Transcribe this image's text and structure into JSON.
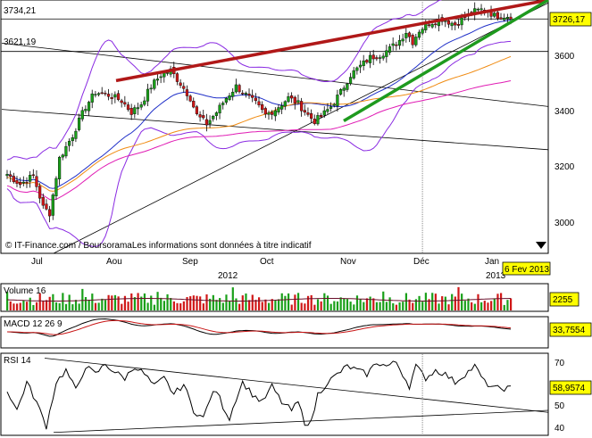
{
  "chart_data": [
    {
      "type": "candlestick",
      "panel": "price",
      "source_note": "© IT-Finance.com / BoursoramaLes informations sont données à titre indicatif",
      "x_labels": [
        "Jul",
        "Aou",
        "Sep",
        "Oct",
        "Nov",
        "Déc",
        "Jan"
      ],
      "year_label": "2012",
      "next_year_label": "2013",
      "date_label": "6 Fev 2013",
      "y_ticks": [
        "3000",
        "3200",
        "3400",
        "3600"
      ],
      "ylim": [
        2920,
        3800
      ],
      "last_value_label": "3726,17",
      "last_value": 3726.17,
      "hline_labels": [
        "3734,21",
        "3621,19"
      ],
      "hlines": [
        3734.21,
        3621.19
      ],
      "colors": {
        "up": "#19a019",
        "down": "#d01818",
        "resistance": "#b01818",
        "support": "#1e9a1e",
        "bollinger": "#8a2be2",
        "ma_short": "#2030c8",
        "ma_mid": "#f08c14",
        "ma_long": "#e01cb4"
      },
      "sessions": 155,
      "close_keypoints": [
        [
          0,
          3195
        ],
        [
          4,
          3160
        ],
        [
          8,
          3190
        ],
        [
          11,
          3080
        ],
        [
          13,
          3060
        ],
        [
          16,
          3250
        ],
        [
          20,
          3330
        ],
        [
          24,
          3430
        ],
        [
          27,
          3480
        ],
        [
          31,
          3470
        ],
        [
          35,
          3450
        ],
        [
          38,
          3410
        ],
        [
          41,
          3440
        ],
        [
          44,
          3500
        ],
        [
          47,
          3540
        ],
        [
          50,
          3555
        ],
        [
          53,
          3510
        ],
        [
          56,
          3460
        ],
        [
          58,
          3400
        ],
        [
          61,
          3370
        ],
        [
          64,
          3410
        ],
        [
          67,
          3460
        ],
        [
          70,
          3500
        ],
        [
          73,
          3470
        ],
        [
          76,
          3440
        ],
        [
          79,
          3400
        ],
        [
          82,
          3420
        ],
        [
          86,
          3460
        ],
        [
          89,
          3440
        ],
        [
          92,
          3400
        ],
        [
          94,
          3380
        ],
        [
          96,
          3395
        ],
        [
          99,
          3430
        ],
        [
          102,
          3480
        ],
        [
          105,
          3540
        ],
        [
          108,
          3570
        ],
        [
          111,
          3600
        ],
        [
          114,
          3610
        ],
        [
          117,
          3630
        ],
        [
          120,
          3660
        ],
        [
          122,
          3690
        ],
        [
          124,
          3655
        ],
        [
          126,
          3695
        ],
        [
          129,
          3720
        ],
        [
          133,
          3735
        ],
        [
          137,
          3715
        ],
        [
          140,
          3740
        ],
        [
          143,
          3760
        ],
        [
          146,
          3770
        ],
        [
          149,
          3745
        ]
      ]
    },
    {
      "type": "bar",
      "panel": "volume",
      "label": "Volume 16",
      "last_value_label": "2255",
      "last_value": 2255
    },
    {
      "type": "line",
      "panel": "macd",
      "label": "MACD 12 26 9",
      "last_value_label": "33,7554",
      "last_value": 33.7554
    },
    {
      "type": "line",
      "panel": "rsi",
      "label": "RSI 14",
      "y_ticks": [
        "40",
        "50",
        "70"
      ],
      "ylim": [
        36,
        76
      ],
      "last_value_label": "58,9574",
      "last_value": 58.9574,
      "keypoints": [
        [
          0,
          58
        ],
        [
          3,
          48
        ],
        [
          6,
          62
        ],
        [
          9,
          52
        ],
        [
          12,
          40
        ],
        [
          15,
          62
        ],
        [
          18,
          68
        ],
        [
          21,
          58
        ],
        [
          24,
          70
        ],
        [
          27,
          66
        ],
        [
          30,
          71
        ],
        [
          33,
          67
        ],
        [
          36,
          64
        ],
        [
          39,
          70
        ],
        [
          42,
          66
        ],
        [
          45,
          60
        ],
        [
          48,
          64
        ],
        [
          51,
          56
        ],
        [
          54,
          61
        ],
        [
          57,
          48
        ],
        [
          60,
          44
        ],
        [
          62,
          54
        ],
        [
          64,
          58
        ],
        [
          66,
          50
        ],
        [
          68,
          44
        ],
        [
          70,
          54
        ],
        [
          72,
          62
        ],
        [
          75,
          56
        ],
        [
          78,
          52
        ],
        [
          81,
          60
        ],
        [
          84,
          52
        ],
        [
          87,
          48
        ],
        [
          89,
          52
        ],
        [
          91,
          42
        ],
        [
          93,
          42
        ],
        [
          95,
          56
        ],
        [
          98,
          62
        ],
        [
          101,
          66
        ],
        [
          104,
          70
        ],
        [
          107,
          68
        ],
        [
          110,
          66
        ],
        [
          113,
          72
        ],
        [
          116,
          70
        ],
        [
          119,
          72
        ],
        [
          121,
          66
        ],
        [
          123,
          60
        ],
        [
          125,
          70
        ],
        [
          128,
          64
        ],
        [
          131,
          68
        ],
        [
          134,
          66
        ],
        [
          137,
          62
        ],
        [
          140,
          66
        ],
        [
          143,
          70
        ],
        [
          146,
          62
        ],
        [
          149,
          58.96
        ]
      ]
    }
  ]
}
